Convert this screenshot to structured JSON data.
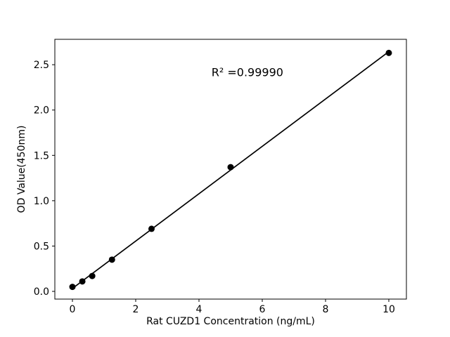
{
  "figure": {
    "background": "#ffffff",
    "foreground": "#000000"
  },
  "chart_data": {
    "type": "scatter",
    "title": "",
    "xlabel": "Rat CUZD1 Concentration (ng/mL)",
    "ylabel": "OD Value(450nm)",
    "annotation": "R² =0.99990",
    "annotation_xy": [
      5.53,
      2.42
    ],
    "x": [
      0,
      0.3125,
      0.625,
      1.25,
      2.5,
      5,
      10
    ],
    "y": [
      0.05,
      0.11,
      0.17,
      0.35,
      0.69,
      1.37,
      2.63
    ],
    "x_ticks": [
      0,
      2,
      4,
      6,
      8,
      10
    ],
    "x_tick_labels": [
      "0",
      "2",
      "4",
      "6",
      "8",
      "10"
    ],
    "y_ticks": [
      0.0,
      0.5,
      1.0,
      1.5,
      2.0,
      2.5
    ],
    "y_tick_labels": [
      "0.0",
      "0.5",
      "1.0",
      "1.5",
      "2.0",
      "2.5"
    ],
    "xlim": [
      -0.556,
      10.556
    ],
    "ylim": [
      -0.085,
      2.78
    ],
    "grid": false,
    "legend": null,
    "fit_line": true,
    "marker_color": "#000000",
    "line_color": "#000000"
  }
}
